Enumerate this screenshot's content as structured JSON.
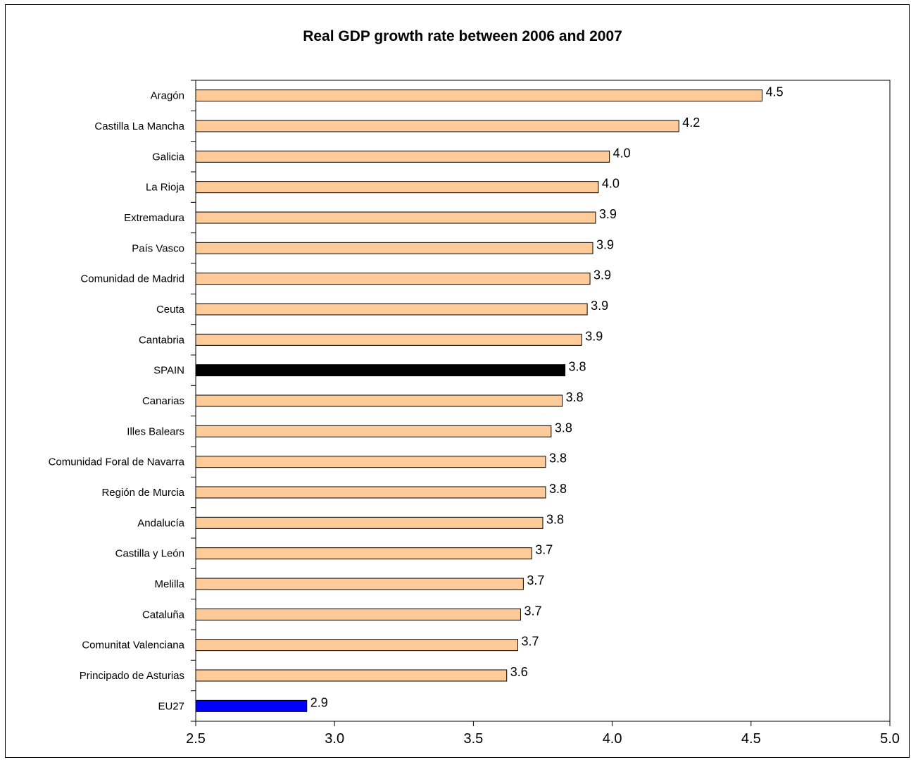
{
  "chart_data": {
    "type": "bar",
    "orientation": "horizontal",
    "title": "Real GDP growth rate between 2006 and 2007",
    "xlabel": "",
    "ylabel": "",
    "xlim": [
      2.5,
      5.0
    ],
    "xticks": [
      "2.5",
      "3.0",
      "3.5",
      "4.0",
      "4.5",
      "5.0"
    ],
    "grid": false,
    "legend": "none",
    "categories": [
      "Aragón",
      "Castilla La Mancha",
      "Galicia",
      "La Rioja",
      "Extremadura",
      "País Vasco",
      "Comunidad de Madrid",
      "Ceuta",
      "Cantabria",
      "SPAIN",
      "Canarias",
      "Illes Balears",
      "Comunidad Foral de Navarra",
      "Región de Murcia",
      "Andalucía",
      "Castilla y León",
      "Melilla",
      "Cataluña",
      "Comunitat Valenciana",
      "Principado de Asturias",
      "EU27"
    ],
    "values": [
      4.54,
      4.24,
      3.99,
      3.95,
      3.94,
      3.93,
      3.92,
      3.91,
      3.89,
      3.83,
      3.82,
      3.78,
      3.76,
      3.76,
      3.75,
      3.71,
      3.68,
      3.67,
      3.66,
      3.62,
      2.9
    ],
    "value_labels": [
      "4.5",
      "4.2",
      "4.0",
      "4.0",
      "3.9",
      "3.9",
      "3.9",
      "3.9",
      "3.9",
      "3.8",
      "3.8",
      "3.8",
      "3.8",
      "3.8",
      "3.8",
      "3.7",
      "3.7",
      "3.7",
      "3.7",
      "3.6",
      "2.9"
    ],
    "colors": {
      "default": "#ffcc99",
      "SPAIN": "#000000",
      "EU27": "#0000ff",
      "outline": "#000000"
    }
  }
}
